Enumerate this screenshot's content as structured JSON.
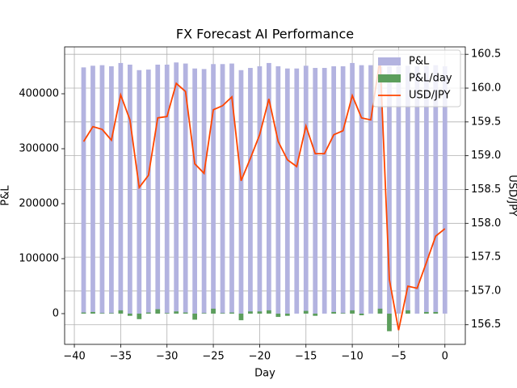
{
  "chart_data": {
    "type": "bar",
    "title": "FX Forecast AI Performance",
    "xlabel": "Day",
    "ylabel": "P&L",
    "y2label": "USD/JPY",
    "x": [
      -39,
      -38,
      -37,
      -36,
      -35,
      -34,
      -33,
      -32,
      -31,
      -30,
      -29,
      -28,
      -27,
      -26,
      -25,
      -24,
      -23,
      -22,
      -21,
      -20,
      -19,
      -18,
      -17,
      -16,
      -15,
      -14,
      -13,
      -12,
      -11,
      -10,
      -9,
      -8,
      -7,
      -6,
      -5,
      -4,
      -3,
      -2,
      -1,
      0
    ],
    "series": [
      {
        "name": "P&L",
        "type": "bar",
        "color": "#b3b3e0",
        "values": [
          448000,
          451000,
          452000,
          450000,
          456000,
          453000,
          443000,
          444000,
          453000,
          453000,
          457000,
          455000,
          446000,
          445000,
          454000,
          454000,
          455000,
          443000,
          447000,
          450000,
          456000,
          450000,
          446000,
          446000,
          451000,
          447000,
          447000,
          450000,
          450000,
          456000,
          452000,
          452000,
          449000,
          450000,
          450000,
          451000,
          450000,
          451000,
          452000,
          450000
        ]
      },
      {
        "name": "P&L/day",
        "type": "bar",
        "color": "#5c9e5c",
        "values": [
          2000,
          3000,
          1000,
          1000,
          6000,
          -4000,
          -10000,
          2000,
          8000,
          1000,
          4000,
          2000,
          -11000,
          1000,
          9000,
          1000,
          2000,
          -12000,
          4000,
          4000,
          6000,
          -6000,
          -4000,
          0,
          5000,
          -4000,
          0,
          3000,
          1000,
          6000,
          -3000,
          0,
          9000,
          -32000,
          0,
          6000,
          0,
          3000,
          3000,
          0
        ]
      },
      {
        "name": "USD/JPY",
        "type": "line",
        "axis": "y2",
        "color": "#ff4500",
        "values": [
          159.21,
          159.43,
          159.39,
          159.23,
          159.9,
          159.53,
          158.53,
          158.71,
          159.56,
          159.58,
          160.07,
          159.95,
          158.88,
          158.74,
          159.68,
          159.74,
          159.87,
          158.63,
          158.96,
          159.31,
          159.84,
          159.21,
          158.94,
          158.84,
          159.44,
          159.03,
          159.03,
          159.31,
          159.37,
          159.89,
          159.56,
          159.53,
          160.43,
          157.17,
          156.42,
          157.07,
          157.04,
          157.42,
          157.81,
          157.92
        ]
      }
    ],
    "xlim": [
      -41.05,
      2.2
    ],
    "xticks": [
      {
        "value": -40,
        "label": "−40"
      },
      {
        "value": -35,
        "label": "−35"
      },
      {
        "value": -30,
        "label": "−30"
      },
      {
        "value": -25,
        "label": "−25"
      },
      {
        "value": -20,
        "label": "−20"
      },
      {
        "value": -15,
        "label": "−15"
      },
      {
        "value": -10,
        "label": "−10"
      },
      {
        "value": -5,
        "label": "−5"
      },
      0
    ],
    "ylim": [
      -55900,
      485300
    ],
    "yticks": [
      0,
      100000,
      200000,
      300000,
      400000
    ],
    "y2lim": [
      156.21,
      160.61
    ],
    "y2ticks": [
      156.5,
      {
        "value": 157,
        "label": "157.0"
      },
      157.5,
      {
        "value": 158,
        "label": "158.0"
      },
      158.5,
      {
        "value": 159,
        "label": "159.0"
      },
      159.5,
      {
        "value": 160,
        "label": "160.0"
      },
      160.5
    ],
    "xgrid": true,
    "y2grid": true,
    "legend": "upper right"
  }
}
